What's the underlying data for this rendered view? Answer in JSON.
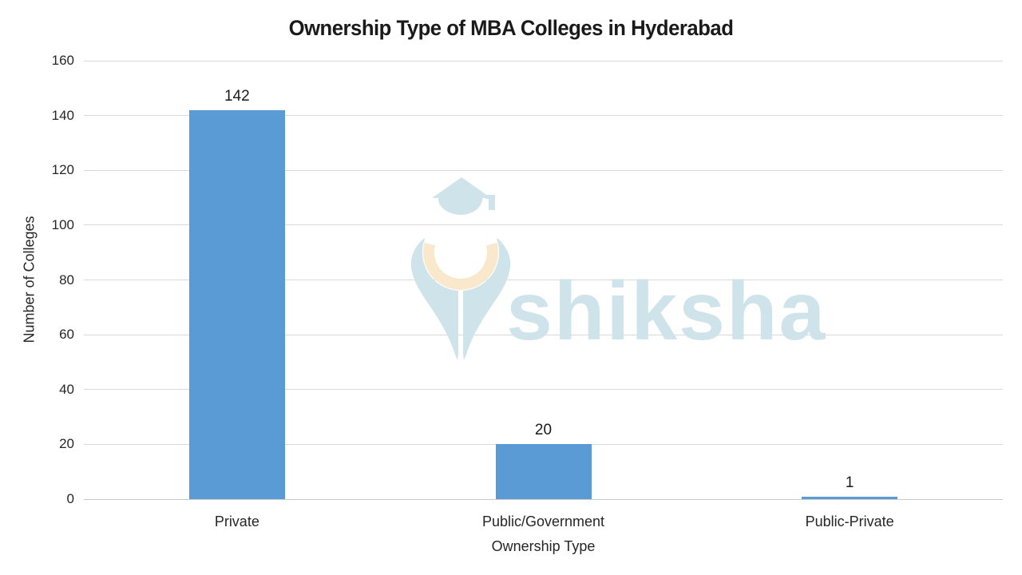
{
  "title": "Ownership Type of MBA Colleges in Hyderabad",
  "watermark": {
    "brand": "shiksha"
  },
  "colors": {
    "bar": "#5B9BD5",
    "gridline": "#d9d9d9",
    "axis_line": "#c9c9c9",
    "text": "#262626",
    "watermark_blue": "#cfe3ea",
    "watermark_cream": "#fae8cd"
  },
  "chart_data": {
    "type": "bar",
    "title": "Ownership Type of MBA Colleges in Hyderabad",
    "categories": [
      "Private",
      "Public/Government",
      "Public-Private"
    ],
    "values": [
      142,
      20,
      1
    ],
    "value_labels": [
      "142",
      "20",
      "1"
    ],
    "xlabel": "Ownership Type",
    "ylabel": "Number of Colleges",
    "ylim": [
      0,
      160
    ],
    "yticks": [
      0,
      20,
      40,
      60,
      80,
      100,
      120,
      140,
      160
    ],
    "grid": true,
    "legend": "none",
    "bar_color": "#5B9BD5"
  }
}
